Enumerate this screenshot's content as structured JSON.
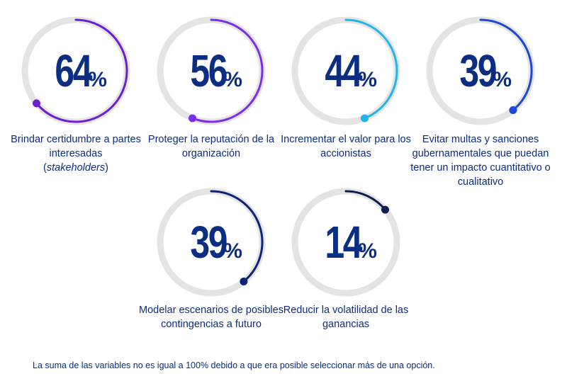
{
  "chart_data": {
    "type": "gauge",
    "unit": "%",
    "items": [
      {
        "value": 64,
        "label": "Brindar certidumbre a partes interesadas",
        "label_italic": "stakeholders",
        "color": "#6b1fd0"
      },
      {
        "value": 56,
        "label": "Proteger la reputación de la organización",
        "color": "#7a2ee8"
      },
      {
        "value": 44,
        "label": "Incrementar el valor para los accionistas",
        "color": "#1fb4ea"
      },
      {
        "value": 39,
        "label": "Evitar multas y sanciones gubernamentales que puedan tener un impacto cuantitativo o cualitativo",
        "color": "#1c48d6"
      },
      {
        "value": 39,
        "label": "Modelar escenarios de posibles contingencias a futuro",
        "color": "#0c237a"
      },
      {
        "value": 14,
        "label": "Reducir la volatilidad de las ganancias",
        "color": "#0c1d4f"
      }
    ],
    "track_color": "#e4e4e4",
    "number_color": "#0b2d82"
  },
  "footnote": "La suma de las variables no es igual a 100% debido a que era posible seleccionar más de una opción."
}
